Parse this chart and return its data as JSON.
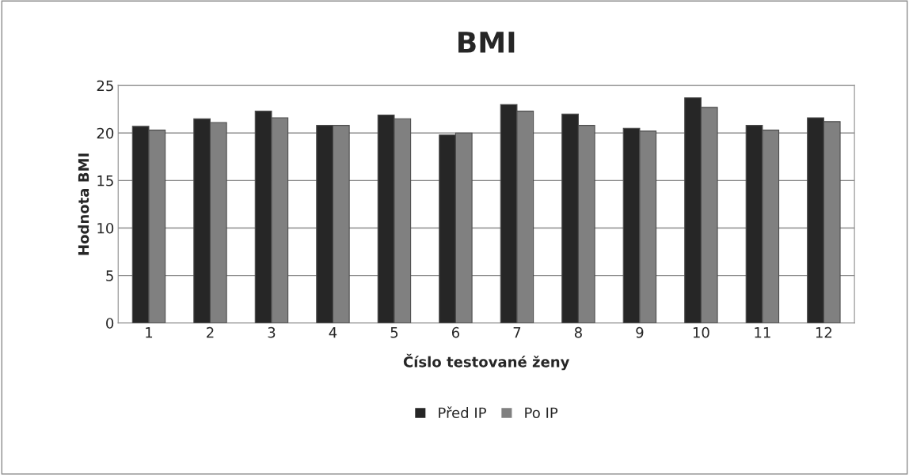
{
  "chart_data": {
    "type": "bar",
    "title": "BMI",
    "xlabel": "Číslo testované ženy",
    "ylabel": "Hodnota BMI",
    "categories": [
      "1",
      "2",
      "3",
      "4",
      "5",
      "6",
      "7",
      "8",
      "9",
      "10",
      "11",
      "12"
    ],
    "series": [
      {
        "name": "Před IP",
        "color": "#262626",
        "values": [
          20.7,
          21.5,
          22.3,
          20.8,
          21.9,
          19.8,
          23.0,
          22.0,
          20.5,
          23.7,
          20.8,
          21.6
        ]
      },
      {
        "name": "Po IP",
        "color": "#808080",
        "values": [
          20.3,
          21.1,
          21.6,
          20.8,
          21.5,
          20.0,
          22.3,
          20.8,
          20.2,
          22.7,
          20.3,
          21.2
        ]
      }
    ],
    "ylim": [
      0,
      25
    ],
    "yticks": [
      0,
      5,
      10,
      15,
      20,
      25
    ],
    "grid": "y",
    "legend": "bottom"
  }
}
